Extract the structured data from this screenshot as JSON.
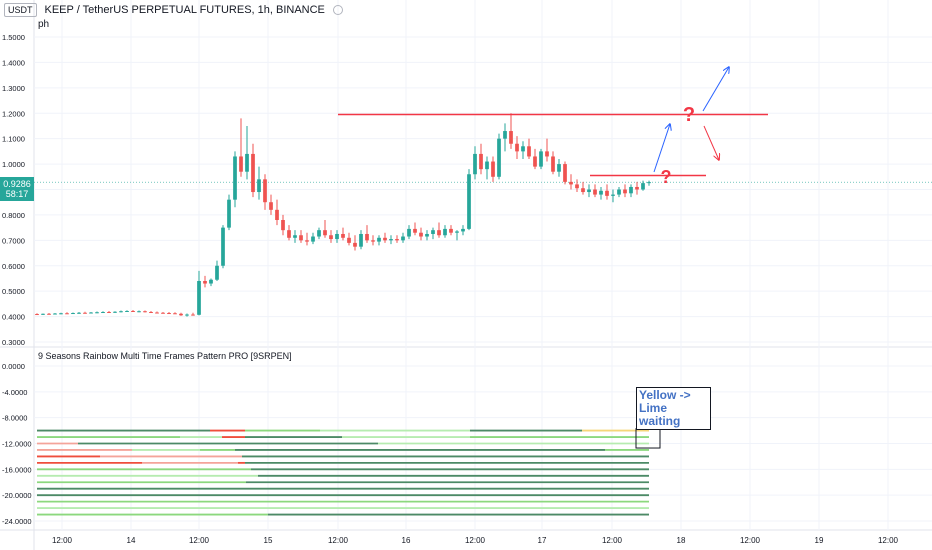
{
  "header": {
    "currency": "USDT",
    "symbol_line": "KEEP / TetherUS PERPETUAL FUTURES, 1h, BINANCE"
  },
  "overlay_label": "ph",
  "indicator_title": "9 Seasons Rainbow Multi Time Frames Pattern PRO [9SRPEN]",
  "last_price": {
    "value": "0.9286",
    "countdown": "58:17"
  },
  "note": {
    "line1": "Yellow -> Lime",
    "line2": "waiting"
  },
  "colors": {
    "up": "#26a69a",
    "down": "#ef5350",
    "line_red": "#f23645",
    "arrow_blue": "#2962ff",
    "question_red": "#f23645"
  },
  "chart_data": [
    {
      "type": "candlestick",
      "title": "",
      "ylim": [
        0.3,
        1.55
      ],
      "y_ticks": [
        "1.5000",
        "1.4000",
        "1.3000",
        "1.2000",
        "1.1000",
        "1.0000",
        "0.9000",
        "0.8000",
        "0.7000",
        "0.6000",
        "0.5000",
        "0.4000",
        "0.3000"
      ],
      "x_ticks": [
        "12:00",
        "14",
        "12:00",
        "15",
        "12:00",
        "16",
        "12:00",
        "17",
        "12:00",
        "18",
        "12:00",
        "19",
        "12:00"
      ],
      "candles": [
        {
          "o": 0.41,
          "h": 0.413,
          "l": 0.407,
          "c": 0.409
        },
        {
          "o": 0.409,
          "h": 0.412,
          "l": 0.406,
          "c": 0.411
        },
        {
          "o": 0.411,
          "h": 0.414,
          "l": 0.408,
          "c": 0.41
        },
        {
          "o": 0.41,
          "h": 0.414,
          "l": 0.408,
          "c": 0.412
        },
        {
          "o": 0.412,
          "h": 0.415,
          "l": 0.409,
          "c": 0.413
        },
        {
          "o": 0.413,
          "h": 0.417,
          "l": 0.41,
          "c": 0.412
        },
        {
          "o": 0.412,
          "h": 0.416,
          "l": 0.41,
          "c": 0.414
        },
        {
          "o": 0.414,
          "h": 0.418,
          "l": 0.411,
          "c": 0.415
        },
        {
          "o": 0.415,
          "h": 0.419,
          "l": 0.412,
          "c": 0.414
        },
        {
          "o": 0.414,
          "h": 0.418,
          "l": 0.412,
          "c": 0.416
        },
        {
          "o": 0.416,
          "h": 0.42,
          "l": 0.413,
          "c": 0.417
        },
        {
          "o": 0.417,
          "h": 0.421,
          "l": 0.414,
          "c": 0.418
        },
        {
          "o": 0.418,
          "h": 0.422,
          "l": 0.415,
          "c": 0.417
        },
        {
          "o": 0.417,
          "h": 0.421,
          "l": 0.414,
          "c": 0.419
        },
        {
          "o": 0.419,
          "h": 0.424,
          "l": 0.416,
          "c": 0.421
        },
        {
          "o": 0.421,
          "h": 0.425,
          "l": 0.418,
          "c": 0.422
        },
        {
          "o": 0.422,
          "h": 0.426,
          "l": 0.418,
          "c": 0.42
        },
        {
          "o": 0.42,
          "h": 0.424,
          "l": 0.417,
          "c": 0.421
        },
        {
          "o": 0.421,
          "h": 0.424,
          "l": 0.416,
          "c": 0.418
        },
        {
          "o": 0.418,
          "h": 0.422,
          "l": 0.415,
          "c": 0.416
        },
        {
          "o": 0.416,
          "h": 0.42,
          "l": 0.413,
          "c": 0.415
        },
        {
          "o": 0.415,
          "h": 0.418,
          "l": 0.412,
          "c": 0.414
        },
        {
          "o": 0.414,
          "h": 0.418,
          "l": 0.411,
          "c": 0.413
        },
        {
          "o": 0.413,
          "h": 0.417,
          "l": 0.41,
          "c": 0.411
        },
        {
          "o": 0.411,
          "h": 0.415,
          "l": 0.403,
          "c": 0.405
        },
        {
          "o": 0.405,
          "h": 0.412,
          "l": 0.4,
          "c": 0.408
        },
        {
          "o": 0.408,
          "h": 0.415,
          "l": 0.404,
          "c": 0.407
        },
        {
          "o": 0.407,
          "h": 0.58,
          "l": 0.405,
          "c": 0.54
        },
        {
          "o": 0.54,
          "h": 0.56,
          "l": 0.515,
          "c": 0.53
        },
        {
          "o": 0.53,
          "h": 0.55,
          "l": 0.52,
          "c": 0.545
        },
        {
          "o": 0.545,
          "h": 0.62,
          "l": 0.54,
          "c": 0.6
        },
        {
          "o": 0.6,
          "h": 0.76,
          "l": 0.59,
          "c": 0.75
        },
        {
          "o": 0.75,
          "h": 0.88,
          "l": 0.74,
          "c": 0.86
        },
        {
          "o": 0.86,
          "h": 1.05,
          "l": 0.83,
          "c": 1.03
        },
        {
          "o": 1.03,
          "h": 1.18,
          "l": 0.95,
          "c": 0.97
        },
        {
          "o": 0.97,
          "h": 1.15,
          "l": 0.94,
          "c": 1.04
        },
        {
          "o": 1.04,
          "h": 1.08,
          "l": 0.87,
          "c": 0.89
        },
        {
          "o": 0.89,
          "h": 0.99,
          "l": 0.86,
          "c": 0.94
        },
        {
          "o": 0.94,
          "h": 0.96,
          "l": 0.82,
          "c": 0.85
        },
        {
          "o": 0.85,
          "h": 0.88,
          "l": 0.8,
          "c": 0.82
        },
        {
          "o": 0.82,
          "h": 0.86,
          "l": 0.76,
          "c": 0.78
        },
        {
          "o": 0.78,
          "h": 0.8,
          "l": 0.72,
          "c": 0.74
        },
        {
          "o": 0.74,
          "h": 0.76,
          "l": 0.7,
          "c": 0.71
        },
        {
          "o": 0.71,
          "h": 0.74,
          "l": 0.69,
          "c": 0.72
        },
        {
          "o": 0.72,
          "h": 0.74,
          "l": 0.69,
          "c": 0.7
        },
        {
          "o": 0.7,
          "h": 0.73,
          "l": 0.68,
          "c": 0.695
        },
        {
          "o": 0.695,
          "h": 0.73,
          "l": 0.685,
          "c": 0.715
        },
        {
          "o": 0.715,
          "h": 0.75,
          "l": 0.705,
          "c": 0.74
        },
        {
          "o": 0.74,
          "h": 0.78,
          "l": 0.71,
          "c": 0.72
        },
        {
          "o": 0.72,
          "h": 0.74,
          "l": 0.69,
          "c": 0.705
        },
        {
          "o": 0.705,
          "h": 0.74,
          "l": 0.69,
          "c": 0.725
        },
        {
          "o": 0.725,
          "h": 0.75,
          "l": 0.7,
          "c": 0.71
        },
        {
          "o": 0.71,
          "h": 0.73,
          "l": 0.68,
          "c": 0.69
        },
        {
          "o": 0.69,
          "h": 0.72,
          "l": 0.66,
          "c": 0.675
        },
        {
          "o": 0.675,
          "h": 0.74,
          "l": 0.665,
          "c": 0.725
        },
        {
          "o": 0.725,
          "h": 0.76,
          "l": 0.69,
          "c": 0.7
        },
        {
          "o": 0.7,
          "h": 0.72,
          "l": 0.68,
          "c": 0.695
        },
        {
          "o": 0.695,
          "h": 0.72,
          "l": 0.68,
          "c": 0.71
        },
        {
          "o": 0.71,
          "h": 0.73,
          "l": 0.69,
          "c": 0.7
        },
        {
          "o": 0.7,
          "h": 0.72,
          "l": 0.685,
          "c": 0.705
        },
        {
          "o": 0.705,
          "h": 0.72,
          "l": 0.69,
          "c": 0.7
        },
        {
          "o": 0.7,
          "h": 0.73,
          "l": 0.69,
          "c": 0.715
        },
        {
          "o": 0.715,
          "h": 0.76,
          "l": 0.705,
          "c": 0.745
        },
        {
          "o": 0.745,
          "h": 0.77,
          "l": 0.72,
          "c": 0.73
        },
        {
          "o": 0.73,
          "h": 0.75,
          "l": 0.7,
          "c": 0.715
        },
        {
          "o": 0.715,
          "h": 0.74,
          "l": 0.7,
          "c": 0.725
        },
        {
          "o": 0.725,
          "h": 0.75,
          "l": 0.705,
          "c": 0.74
        },
        {
          "o": 0.74,
          "h": 0.77,
          "l": 0.71,
          "c": 0.72
        },
        {
          "o": 0.72,
          "h": 0.76,
          "l": 0.71,
          "c": 0.745
        },
        {
          "o": 0.745,
          "h": 0.76,
          "l": 0.72,
          "c": 0.73
        },
        {
          "o": 0.73,
          "h": 0.74,
          "l": 0.7,
          "c": 0.735
        },
        {
          "o": 0.735,
          "h": 0.76,
          "l": 0.72,
          "c": 0.745
        },
        {
          "o": 0.745,
          "h": 0.98,
          "l": 0.74,
          "c": 0.96
        },
        {
          "o": 0.96,
          "h": 1.07,
          "l": 0.94,
          "c": 1.04
        },
        {
          "o": 1.04,
          "h": 1.08,
          "l": 0.96,
          "c": 0.98
        },
        {
          "o": 0.98,
          "h": 1.03,
          "l": 0.94,
          "c": 1.01
        },
        {
          "o": 1.01,
          "h": 1.03,
          "l": 0.93,
          "c": 0.95
        },
        {
          "o": 0.95,
          "h": 1.12,
          "l": 0.94,
          "c": 1.1
        },
        {
          "o": 1.1,
          "h": 1.16,
          "l": 1.05,
          "c": 1.13
        },
        {
          "o": 1.13,
          "h": 1.2,
          "l": 1.06,
          "c": 1.08
        },
        {
          "o": 1.08,
          "h": 1.11,
          "l": 1.02,
          "c": 1.05
        },
        {
          "o": 1.05,
          "h": 1.09,
          "l": 1.02,
          "c": 1.07
        },
        {
          "o": 1.07,
          "h": 1.1,
          "l": 1.02,
          "c": 1.03
        },
        {
          "o": 1.03,
          "h": 1.06,
          "l": 0.98,
          "c": 0.99
        },
        {
          "o": 0.99,
          "h": 1.06,
          "l": 0.98,
          "c": 1.05
        },
        {
          "o": 1.05,
          "h": 1.1,
          "l": 1.01,
          "c": 1.03
        },
        {
          "o": 1.03,
          "h": 1.05,
          "l": 0.96,
          "c": 0.97
        },
        {
          "o": 0.97,
          "h": 1.02,
          "l": 0.95,
          "c": 1.0
        },
        {
          "o": 1.0,
          "h": 1.01,
          "l": 0.92,
          "c": 0.93
        },
        {
          "o": 0.93,
          "h": 0.96,
          "l": 0.9,
          "c": 0.92
        },
        {
          "o": 0.92,
          "h": 0.94,
          "l": 0.89,
          "c": 0.905
        },
        {
          "o": 0.905,
          "h": 0.93,
          "l": 0.88,
          "c": 0.89
        },
        {
          "o": 0.89,
          "h": 0.92,
          "l": 0.87,
          "c": 0.9
        },
        {
          "o": 0.9,
          "h": 0.92,
          "l": 0.87,
          "c": 0.88
        },
        {
          "o": 0.88,
          "h": 0.91,
          "l": 0.86,
          "c": 0.895
        },
        {
          "o": 0.895,
          "h": 0.92,
          "l": 0.86,
          "c": 0.875
        },
        {
          "o": 0.875,
          "h": 0.9,
          "l": 0.85,
          "c": 0.88
        },
        {
          "o": 0.88,
          "h": 0.91,
          "l": 0.87,
          "c": 0.9
        },
        {
          "o": 0.9,
          "h": 0.92,
          "l": 0.87,
          "c": 0.885
        },
        {
          "o": 0.885,
          "h": 0.92,
          "l": 0.87,
          "c": 0.91
        },
        {
          "o": 0.91,
          "h": 0.93,
          "l": 0.88,
          "c": 0.9
        },
        {
          "o": 0.9,
          "h": 0.935,
          "l": 0.895,
          "c": 0.925
        },
        {
          "o": 0.925,
          "h": 0.935,
          "l": 0.915,
          "c": 0.929
        }
      ],
      "annotations": [
        {
          "kind": "hline",
          "y": 1.195,
          "x_from_index": 37,
          "x_to_index": 999
        },
        {
          "kind": "hline",
          "y": 0.955,
          "x_from_index": 60,
          "x_to_index": 999
        },
        {
          "kind": "arrow",
          "color": "blue"
        },
        {
          "kind": "arrow",
          "color": "blue"
        },
        {
          "kind": "arrow",
          "color": "red"
        },
        {
          "kind": "question",
          "text": "?"
        },
        {
          "kind": "question",
          "text": "?"
        }
      ]
    },
    {
      "type": "rainbow-bars",
      "title": "9 Seasons Rainbow Multi Time Frames Pattern PRO [9SRPEN]",
      "ylim": [
        -24.5,
        0.5
      ],
      "y_ticks": [
        "0.0000",
        "-4.0000",
        "-8.0000",
        "-12.0000",
        "-16.0000",
        "-20.0000",
        "-24.0000"
      ],
      "rows": [
        -10,
        -11,
        -12,
        -13,
        -14,
        -15,
        -16,
        -17,
        -18,
        -19,
        -20,
        -21,
        -22,
        -23
      ]
    }
  ]
}
